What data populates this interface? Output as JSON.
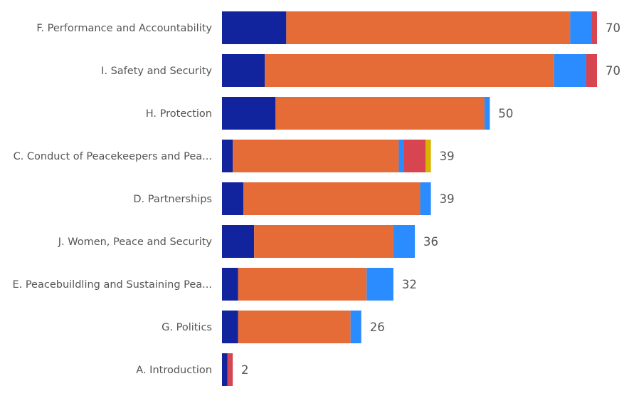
{
  "chart_data": {
    "type": "bar",
    "orientation": "horizontal",
    "stacked": true,
    "categories": [
      "F. Performance and Accountability",
      "I. Safety and Security",
      "H. Protection",
      "C. Conduct of Peacekeepers and Pea...",
      "D. Partnerships",
      "J. Women, Peace and Security",
      "E. Peacebuildling and Sustaining Pea...",
      "G. Politics",
      "A. Introduction"
    ],
    "totals": [
      70,
      70,
      50,
      39,
      39,
      36,
      32,
      26,
      2
    ],
    "series": [
      {
        "color": "#12239E",
        "values": [
          12,
          8,
          10,
          2,
          4,
          6,
          3,
          3,
          1
        ]
      },
      {
        "color": "#E66C37",
        "values": [
          53,
          54,
          39,
          31,
          33,
          26,
          24,
          21,
          0
        ]
      },
      {
        "color": "#2A8CFF",
        "values": [
          4,
          6,
          1,
          1,
          2,
          4,
          5,
          2,
          0
        ]
      },
      {
        "color": "#D64550",
        "values": [
          1,
          2,
          0,
          4,
          0,
          0,
          0,
          0,
          1
        ]
      },
      {
        "color": "#D9B300",
        "values": [
          0,
          0,
          0,
          1,
          0,
          0,
          0,
          0,
          0
        ]
      }
    ],
    "xlim": [
      0,
      70
    ],
    "grid": false,
    "legend": "none"
  }
}
